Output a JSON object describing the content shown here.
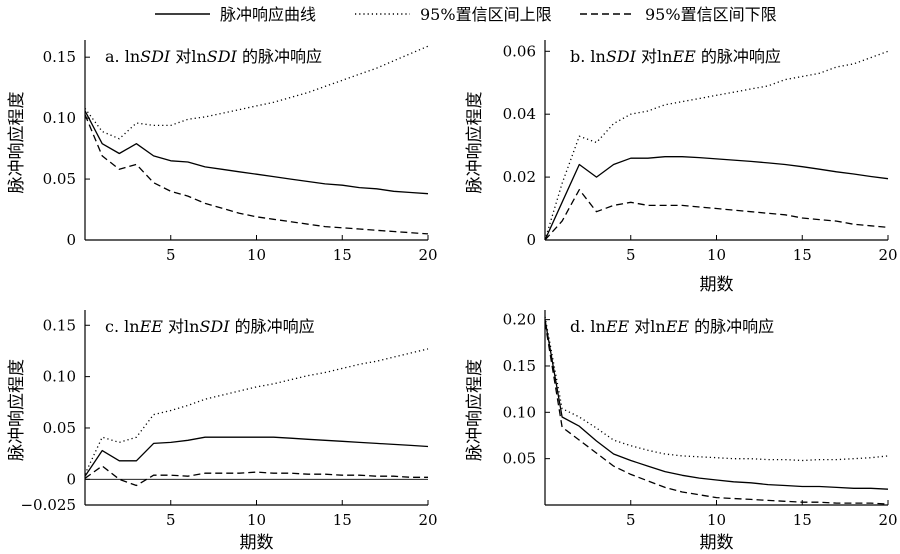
{
  "legend": [
    {
      "label": "脉冲响应曲线",
      "style": "solid"
    },
    {
      "label": "95%置信区间上限",
      "style": "dotted"
    },
    {
      "label": "95%置信区间下限",
      "style": "dashed"
    }
  ],
  "chart_data": [
    {
      "type": "line",
      "title_parts": [
        {
          "t": "a. ln",
          "i": false
        },
        {
          "t": "SDI",
          "i": true
        },
        {
          "t": " 对ln",
          "i": false
        },
        {
          "t": "SDI",
          "i": true
        },
        {
          "t": " 的脉冲响应",
          "i": false
        }
      ],
      "ylabel": "脉冲响应程度",
      "xlabel": "",
      "xlim": [
        0,
        20
      ],
      "ylim": [
        0,
        0.16
      ],
      "xticks": [
        5,
        10,
        15,
        20
      ],
      "yticks": [
        0,
        0.05,
        0.1,
        0.15
      ],
      "ytick_labels": [
        "0",
        "0.05",
        "0.10",
        "0.15"
      ],
      "series": [
        {
          "style": "solid",
          "x": [
            0,
            1,
            2,
            3,
            4,
            5,
            6,
            7,
            8,
            9,
            10,
            11,
            12,
            13,
            14,
            15,
            16,
            17,
            18,
            19,
            20
          ],
          "y": [
            0.106,
            0.079,
            0.071,
            0.079,
            0.069,
            0.065,
            0.064,
            0.06,
            0.058,
            0.056,
            0.054,
            0.052,
            0.05,
            0.048,
            0.046,
            0.045,
            0.043,
            0.042,
            0.04,
            0.039,
            0.038
          ]
        },
        {
          "style": "dotted",
          "x": [
            0,
            1,
            2,
            3,
            4,
            5,
            6,
            7,
            8,
            9,
            10,
            11,
            12,
            13,
            14,
            15,
            16,
            17,
            18,
            19,
            20
          ],
          "y": [
            0.108,
            0.089,
            0.083,
            0.096,
            0.094,
            0.094,
            0.099,
            0.101,
            0.104,
            0.107,
            0.11,
            0.113,
            0.117,
            0.121,
            0.126,
            0.131,
            0.136,
            0.141,
            0.147,
            0.153,
            0.159
          ]
        },
        {
          "style": "dashed",
          "x": [
            0,
            1,
            2,
            3,
            4,
            5,
            6,
            7,
            8,
            9,
            10,
            11,
            12,
            13,
            14,
            15,
            16,
            17,
            18,
            19,
            20
          ],
          "y": [
            0.103,
            0.069,
            0.058,
            0.062,
            0.047,
            0.04,
            0.036,
            0.03,
            0.026,
            0.022,
            0.019,
            0.017,
            0.015,
            0.013,
            0.011,
            0.01,
            0.009,
            0.008,
            0.007,
            0.006,
            0.005
          ]
        }
      ]
    },
    {
      "type": "line",
      "title_parts": [
        {
          "t": "b. ln",
          "i": false
        },
        {
          "t": "SDI",
          "i": true
        },
        {
          "t": " 对ln",
          "i": false
        },
        {
          "t": "EE",
          "i": true
        },
        {
          "t": " 的脉冲响应",
          "i": false
        }
      ],
      "ylabel": "脉冲响应程度",
      "xlabel": "期数",
      "xlim": [
        0,
        20
      ],
      "ylim": [
        0,
        0.062
      ],
      "xticks": [
        5,
        10,
        15,
        20
      ],
      "yticks": [
        0,
        0.02,
        0.04,
        0.06
      ],
      "ytick_labels": [
        "0",
        "0.02",
        "0.04",
        "0.06"
      ],
      "series": [
        {
          "style": "solid",
          "x": [
            0,
            1,
            2,
            3,
            4,
            5,
            6,
            7,
            8,
            9,
            10,
            11,
            12,
            13,
            14,
            15,
            16,
            17,
            18,
            19,
            20
          ],
          "y": [
            0,
            0.012,
            0.024,
            0.02,
            0.024,
            0.026,
            0.026,
            0.0265,
            0.0265,
            0.0262,
            0.0258,
            0.0254,
            0.025,
            0.0245,
            0.024,
            0.0233,
            0.0225,
            0.0217,
            0.021,
            0.0202,
            0.0195
          ]
        },
        {
          "style": "dotted",
          "x": [
            0,
            1,
            2,
            3,
            4,
            5,
            6,
            7,
            8,
            9,
            10,
            11,
            12,
            13,
            14,
            15,
            16,
            17,
            18,
            19,
            20
          ],
          "y": [
            0,
            0.018,
            0.033,
            0.031,
            0.037,
            0.04,
            0.041,
            0.043,
            0.044,
            0.045,
            0.046,
            0.047,
            0.048,
            0.049,
            0.051,
            0.052,
            0.053,
            0.055,
            0.056,
            0.058,
            0.06
          ]
        },
        {
          "style": "dashed",
          "x": [
            0,
            1,
            2,
            3,
            4,
            5,
            6,
            7,
            8,
            9,
            10,
            11,
            12,
            13,
            14,
            15,
            16,
            17,
            18,
            19,
            20
          ],
          "y": [
            0,
            0.006,
            0.016,
            0.009,
            0.011,
            0.012,
            0.011,
            0.011,
            0.011,
            0.0105,
            0.01,
            0.0095,
            0.009,
            0.0085,
            0.008,
            0.007,
            0.0065,
            0.006,
            0.005,
            0.0045,
            0.004
          ]
        }
      ]
    },
    {
      "type": "line",
      "title_parts": [
        {
          "t": "c. ln",
          "i": false
        },
        {
          "t": "EE",
          "i": true
        },
        {
          "t": " 对ln",
          "i": false
        },
        {
          "t": "SDI",
          "i": true
        },
        {
          "t": " 的脉冲响应",
          "i": false
        }
      ],
      "ylabel": "脉冲响应程度",
      "xlabel": "期数",
      "xlim": [
        0,
        20
      ],
      "ylim": [
        -0.025,
        0.16
      ],
      "xticks": [
        5,
        10,
        15,
        20
      ],
      "yticks": [
        -0.025,
        0,
        0.05,
        0.1,
        0.15
      ],
      "ytick_labels": [
        "−0.025",
        "0",
        "0.05",
        "0.10",
        "0.15"
      ],
      "series": [
        {
          "style": "solid",
          "x": [
            0,
            1,
            2,
            3,
            4,
            5,
            6,
            7,
            8,
            9,
            10,
            11,
            12,
            13,
            14,
            15,
            16,
            17,
            18,
            19,
            20
          ],
          "y": [
            0.003,
            0.028,
            0.018,
            0.018,
            0.035,
            0.036,
            0.038,
            0.041,
            0.041,
            0.041,
            0.041,
            0.041,
            0.04,
            0.039,
            0.038,
            0.037,
            0.036,
            0.035,
            0.034,
            0.033,
            0.032
          ]
        },
        {
          "style": "dotted",
          "x": [
            0,
            1,
            2,
            3,
            4,
            5,
            6,
            7,
            8,
            9,
            10,
            11,
            12,
            13,
            14,
            15,
            16,
            17,
            18,
            19,
            20
          ],
          "y": [
            0.005,
            0.041,
            0.036,
            0.041,
            0.063,
            0.067,
            0.072,
            0.078,
            0.082,
            0.086,
            0.09,
            0.093,
            0.097,
            0.101,
            0.104,
            0.108,
            0.112,
            0.115,
            0.119,
            0.123,
            0.127
          ]
        },
        {
          "style": "dashed",
          "x": [
            0,
            1,
            2,
            3,
            4,
            5,
            6,
            7,
            8,
            9,
            10,
            11,
            12,
            13,
            14,
            15,
            16,
            17,
            18,
            19,
            20
          ],
          "y": [
            0.001,
            0.013,
            0.0,
            -0.006,
            0.004,
            0.004,
            0.003,
            0.006,
            0.006,
            0.006,
            0.007,
            0.006,
            0.006,
            0.005,
            0.005,
            0.004,
            0.004,
            0.003,
            0.003,
            0.002,
            0.002
          ]
        }
      ]
    },
    {
      "type": "line",
      "title_parts": [
        {
          "t": "d. ln",
          "i": false
        },
        {
          "t": "EE",
          "i": true
        },
        {
          "t": " 对ln",
          "i": false
        },
        {
          "t": "EE",
          "i": true
        },
        {
          "t": " 的脉冲响应",
          "i": false
        }
      ],
      "ylabel": "脉冲响应程度",
      "xlabel": "期数",
      "xlim": [
        0,
        20
      ],
      "ylim": [
        0,
        0.205
      ],
      "xticks": [
        5,
        10,
        15,
        20
      ],
      "yticks": [
        0.05,
        0.1,
        0.15,
        0.2
      ],
      "ytick_labels": [
        "0.05",
        "0.10",
        "0.15",
        "0.20"
      ],
      "series": [
        {
          "style": "solid",
          "x": [
            0,
            1,
            2,
            3,
            4,
            5,
            6,
            7,
            8,
            9,
            10,
            11,
            12,
            13,
            14,
            15,
            16,
            17,
            18,
            19,
            20
          ],
          "y": [
            0.2,
            0.095,
            0.085,
            0.069,
            0.055,
            0.048,
            0.042,
            0.036,
            0.032,
            0.029,
            0.027,
            0.025,
            0.024,
            0.022,
            0.021,
            0.02,
            0.02,
            0.019,
            0.018,
            0.018,
            0.017
          ]
        },
        {
          "style": "dotted",
          "x": [
            0,
            1,
            2,
            3,
            4,
            5,
            6,
            7,
            8,
            9,
            10,
            11,
            12,
            13,
            14,
            15,
            16,
            17,
            18,
            19,
            20
          ],
          "y": [
            0.203,
            0.104,
            0.095,
            0.083,
            0.07,
            0.064,
            0.059,
            0.055,
            0.053,
            0.052,
            0.051,
            0.05,
            0.05,
            0.049,
            0.049,
            0.048,
            0.049,
            0.049,
            0.05,
            0.051,
            0.053
          ]
        },
        {
          "style": "dashed",
          "x": [
            0,
            1,
            2,
            3,
            4,
            5,
            6,
            7,
            8,
            9,
            10,
            11,
            12,
            13,
            14,
            15,
            16,
            17,
            18,
            19,
            20
          ],
          "y": [
            0.197,
            0.084,
            0.07,
            0.056,
            0.042,
            0.033,
            0.026,
            0.019,
            0.014,
            0.011,
            0.008,
            0.007,
            0.006,
            0.005,
            0.004,
            0.003,
            0.003,
            0.002,
            0.002,
            0.002,
            0.001
          ]
        }
      ]
    }
  ]
}
